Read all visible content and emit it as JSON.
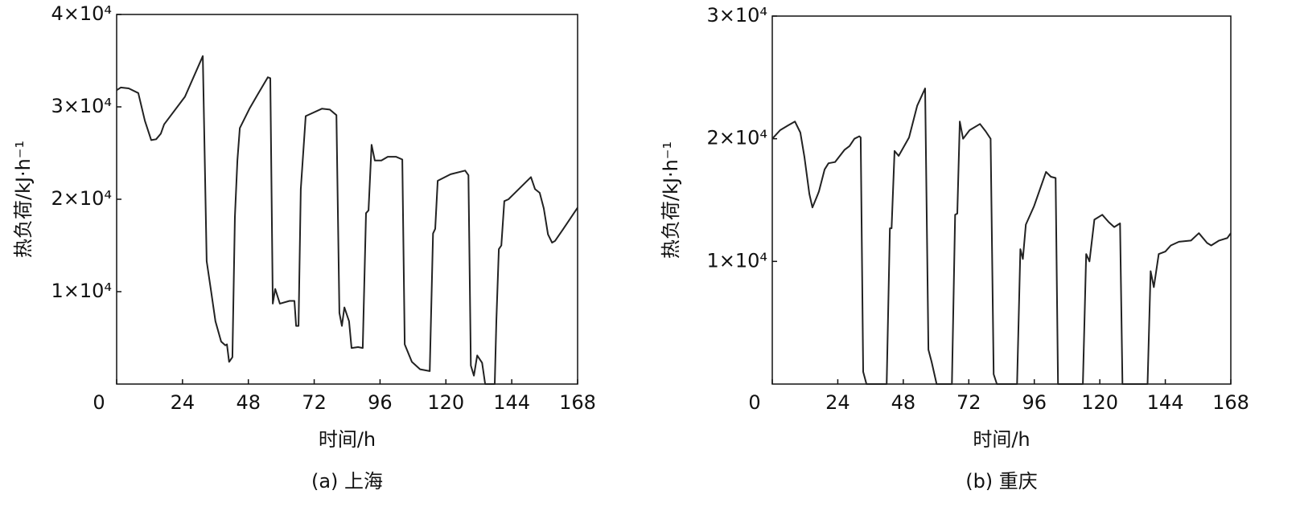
{
  "chart_data": [
    {
      "type": "line",
      "caption": "(a) 上海",
      "xlabel": "时间/h",
      "ylabel": "热负荷/kJ·h⁻¹",
      "x": [
        0,
        1.5,
        4.4,
        7.9,
        10.3,
        12.6,
        14.4,
        16.1,
        17.3,
        24.9,
        31.4,
        32.8,
        34.3,
        36,
        38.1,
        39.6,
        40.2,
        41,
        42.2,
        43.1,
        44,
        44.9,
        48.4,
        51.3,
        55.1,
        56,
        56.9,
        57.8,
        59.5,
        63,
        64.8,
        65.4,
        66.3,
        67.1,
        68.9,
        74.8,
        77.7,
        80.1,
        81.2,
        82.1,
        83,
        84.7,
        85.6,
        88,
        89.7,
        90.9,
        91.8,
        92.9,
        94.1,
        96.5,
        98.8,
        101.8,
        104.1,
        105,
        107.6,
        110.6,
        114.1,
        115.3,
        116.1,
        117,
        121.7,
        127,
        128.2,
        129.1,
        130.2,
        131.4,
        133.2,
        134.3,
        137.8,
        138.4,
        139.3,
        140.2,
        141.3,
        142.8,
        151,
        152.5,
        154.2,
        155.7,
        157.2,
        158.7,
        159.8,
        162.8,
        168
      ],
      "series": [
        {
          "color": "#222222",
          "values": [
            31800,
            32100,
            32000,
            31500,
            28500,
            26400,
            26500,
            27100,
            28100,
            31100,
            35500,
            13300,
            10300,
            6800,
            4600,
            4200,
            4300,
            2400,
            2900,
            18100,
            24200,
            27700,
            29800,
            31300,
            33200,
            33100,
            8700,
            10300,
            8700,
            9000,
            9000,
            6300,
            6300,
            21100,
            29000,
            29800,
            29700,
            29100,
            7700,
            6300,
            8300,
            6800,
            3900,
            4000,
            3900,
            18500,
            18800,
            25900,
            24200,
            24200,
            24600,
            24600,
            24300,
            4300,
            2400,
            1600,
            1400,
            16300,
            16800,
            22000,
            22700,
            23100,
            22600,
            2000,
            900,
            3100,
            2300,
            0,
            0,
            6800,
            14600,
            15000,
            19800,
            20000,
            22400,
            21100,
            20700,
            19000,
            16200,
            15300,
            15500,
            16800,
            19100
          ]
        }
      ],
      "xlim": [
        0,
        168
      ],
      "xticks": [
        0,
        24,
        48,
        72,
        96,
        120,
        144,
        168
      ],
      "ylim": [
        0,
        40000
      ],
      "yticks": [
        {
          "value": 10000,
          "label": "1×10⁴"
        },
        {
          "value": 20000,
          "label": "2×10⁴"
        },
        {
          "value": 30000,
          "label": "3×10⁴"
        },
        {
          "value": 40000,
          "label": "4×10⁴"
        }
      ]
    },
    {
      "type": "line",
      "caption": "(b) 重庆",
      "xlabel": "时间/h",
      "ylabel": "热负荷/kJ·h⁻¹",
      "x": [
        0,
        2.9,
        5.9,
        8.3,
        10.3,
        11.8,
        13.6,
        14.7,
        16.2,
        17.1,
        19.2,
        20.6,
        23,
        26.5,
        28.3,
        30.1,
        31.9,
        32.4,
        33.3,
        34.5,
        41.9,
        43.1,
        43.7,
        44.8,
        46.3,
        50.1,
        53.1,
        56,
        57.2,
        58.4,
        60.2,
        65.8,
        67,
        67.8,
        68.7,
        69.9,
        72.3,
        76.1,
        78.2,
        80,
        81.1,
        82.3,
        89.7,
        90.9,
        91.8,
        92.9,
        95.9,
        100.3,
        102.1,
        103.8,
        104.7,
        113.8,
        115,
        116.2,
        118,
        120.9,
        123.3,
        125.3,
        127.4,
        128.3,
        137.5,
        138.6,
        139.8,
        141.6,
        144,
        146,
        149,
        153.4,
        156.3,
        159.3,
        160.8,
        163.7,
        166.7,
        168
      ],
      "series": [
        {
          "color": "#222222",
          "values": [
            20000,
            20700,
            21100,
            21400,
            20500,
            18500,
            15500,
            14400,
            15200,
            15700,
            17500,
            18000,
            18100,
            19100,
            19400,
            20000,
            20200,
            20100,
            1000,
            0,
            0,
            12700,
            12700,
            19000,
            18600,
            20100,
            22700,
            24100,
            2800,
            1800,
            0,
            0,
            13800,
            13900,
            21400,
            20000,
            20700,
            21200,
            20600,
            20000,
            800,
            0,
            0,
            11000,
            10200,
            13000,
            14500,
            17300,
            16900,
            16800,
            0,
            0,
            10600,
            10000,
            13400,
            13800,
            13200,
            12800,
            13100,
            0,
            0,
            9200,
            7900,
            10600,
            10800,
            11300,
            11600,
            11700,
            12300,
            11500,
            11300,
            11700,
            11900,
            12300
          ]
        }
      ],
      "xlim": [
        0,
        168
      ],
      "xticks": [
        0,
        24,
        48,
        72,
        96,
        120,
        144,
        168
      ],
      "ylim": [
        0,
        30000
      ],
      "yticks": [
        {
          "value": 10000,
          "label": "1×10⁴"
        },
        {
          "value": 20000,
          "label": "2×10⁴"
        },
        {
          "value": 30000,
          "label": "3×10⁴"
        }
      ]
    }
  ]
}
